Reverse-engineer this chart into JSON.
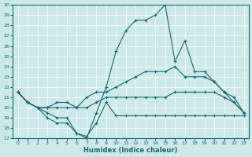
{
  "title": "",
  "xlabel": "Humidex (Indice chaleur)",
  "ylabel": "",
  "background_color": "#cce8e8",
  "grid_color": "#ffffff",
  "line_color": "#1a6b6b",
  "xlim": [
    -0.5,
    23.5
  ],
  "ylim": [
    17,
    30
  ],
  "yticks": [
    17,
    18,
    19,
    20,
    21,
    22,
    23,
    24,
    25,
    26,
    27,
    28,
    29,
    30
  ],
  "xticks": [
    0,
    1,
    2,
    3,
    4,
    5,
    6,
    7,
    8,
    9,
    10,
    11,
    12,
    13,
    14,
    15,
    16,
    17,
    18,
    19,
    20,
    21,
    22,
    23
  ],
  "series1_x": [
    0,
    1,
    2,
    3,
    4,
    5,
    6,
    7,
    8,
    9,
    10,
    11,
    12,
    13,
    14,
    15,
    16,
    17,
    18,
    19,
    20,
    21,
    22,
    23
  ],
  "series1_y": [
    21.5,
    20.5,
    20.0,
    19.0,
    18.5,
    18.5,
    17.5,
    17.2,
    18.5,
    20.5,
    19.2,
    19.2,
    19.2,
    19.2,
    19.2,
    19.2,
    19.2,
    19.2,
    19.2,
    19.2,
    19.2,
    19.2,
    19.2,
    19.2
  ],
  "series2_x": [
    0,
    1,
    2,
    3,
    4,
    5,
    6,
    7,
    8,
    9,
    10,
    11,
    12,
    13,
    14,
    15,
    16,
    17,
    18,
    19,
    20,
    21,
    22,
    23
  ],
  "series2_y": [
    21.5,
    20.5,
    20.0,
    20.0,
    20.0,
    20.0,
    20.0,
    20.0,
    20.5,
    21.0,
    21.0,
    21.0,
    21.0,
    21.0,
    21.0,
    21.0,
    21.5,
    21.5,
    21.5,
    21.5,
    21.5,
    21.0,
    20.5,
    19.5
  ],
  "series3_x": [
    0,
    1,
    2,
    3,
    4,
    5,
    6,
    7,
    8,
    9,
    10,
    11,
    12,
    13,
    14,
    15,
    16,
    17,
    18,
    19,
    20,
    21,
    22,
    23
  ],
  "series3_y": [
    21.5,
    20.5,
    20.0,
    20.0,
    20.5,
    20.5,
    20.0,
    21.0,
    21.5,
    21.5,
    22.0,
    22.5,
    23.0,
    23.5,
    23.5,
    23.5,
    24.0,
    23.0,
    23.0,
    23.0,
    22.5,
    21.5,
    20.5,
    19.5
  ],
  "series4_x": [
    0,
    1,
    2,
    3,
    4,
    5,
    6,
    7,
    8,
    9,
    10,
    11,
    12,
    13,
    14,
    15,
    16,
    17,
    18,
    19,
    20,
    21,
    22,
    23
  ],
  "series4_y": [
    21.5,
    20.5,
    20.0,
    19.5,
    19.0,
    19.0,
    17.5,
    17.0,
    19.5,
    22.0,
    25.5,
    27.5,
    28.5,
    28.5,
    29.0,
    30.0,
    24.5,
    26.5,
    23.5,
    23.5,
    22.5,
    21.5,
    21.0,
    19.5
  ]
}
